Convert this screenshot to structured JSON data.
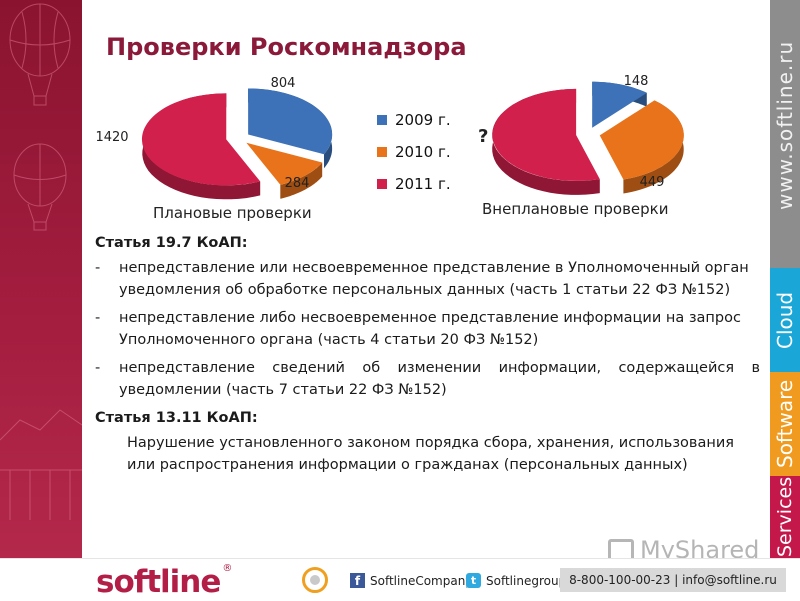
{
  "slide": {
    "title": "Проверки Роскомнадзора"
  },
  "charts": {
    "legend": [
      {
        "label": "2009 г.",
        "color": "#3d72b8"
      },
      {
        "label": "2010 г.",
        "color": "#e8731a"
      },
      {
        "label": "2011 г.",
        "color": "#d2204c"
      }
    ],
    "unknown_mark": "?"
  },
  "chart_data": [
    {
      "type": "pie",
      "title": "Плановые проверки",
      "labels": [
        "2009 г.",
        "2010 г.",
        "2011 г."
      ],
      "values": [
        804,
        284,
        1420
      ],
      "value_labels": [
        "804",
        "284",
        "1420"
      ],
      "colors": [
        "#3d72b8",
        "#e8731a",
        "#d2204c"
      ],
      "style": "3d-exploded"
    },
    {
      "type": "pie",
      "title": "Внеплановые проверки",
      "labels": [
        "2009 г.",
        "2010 г.",
        "2011 г."
      ],
      "values": [
        148,
        449,
        null
      ],
      "value_labels": [
        "148",
        "449",
        "?"
      ],
      "colors": [
        "#3d72b8",
        "#e8731a",
        "#d2204c"
      ],
      "style": "3d-exploded"
    }
  ],
  "content": {
    "article1_heading": "Статья 19.7 КоАП:",
    "dash": "-",
    "article1_items": [
      "непредставление или несвоевременное представление в Уполномоченный орган уведомления об обработке персональных данных (часть 1 статьи 22 ФЗ №152)",
      "непредставление либо несвоевременное представление информации на запрос Уполномоченного органа (часть 4 статьи 20 ФЗ №152)",
      "непредставление сведений об изменении информации, содержащейся в уведомлении (часть 7 статьи 22 ФЗ №152)"
    ],
    "article2_heading": "Статья 13.11 КоАП:",
    "article2_text": "Нарушение установленного законом порядка сбора, хранения, использования или распространения информации о гражданах (персональных данных)"
  },
  "sidebar": {
    "site": "www.softline.ru",
    "cloud": "Cloud",
    "software": "Software",
    "services": "Services",
    "colors": {
      "band": "#8d8d8d",
      "cloud": "#1aa7d8",
      "software": "#f09a1f",
      "services": "#c4174a"
    }
  },
  "footer": {
    "logo": "softline",
    "logo_mark": "®",
    "facebook_icon": "f",
    "facebook": "SoftlineCompany",
    "twitter_icon": "t",
    "twitter": "Softlinegroup",
    "contact": "8-800-100-00-23 | info@softline.ru"
  },
  "watermark": {
    "text": "MyShared"
  }
}
